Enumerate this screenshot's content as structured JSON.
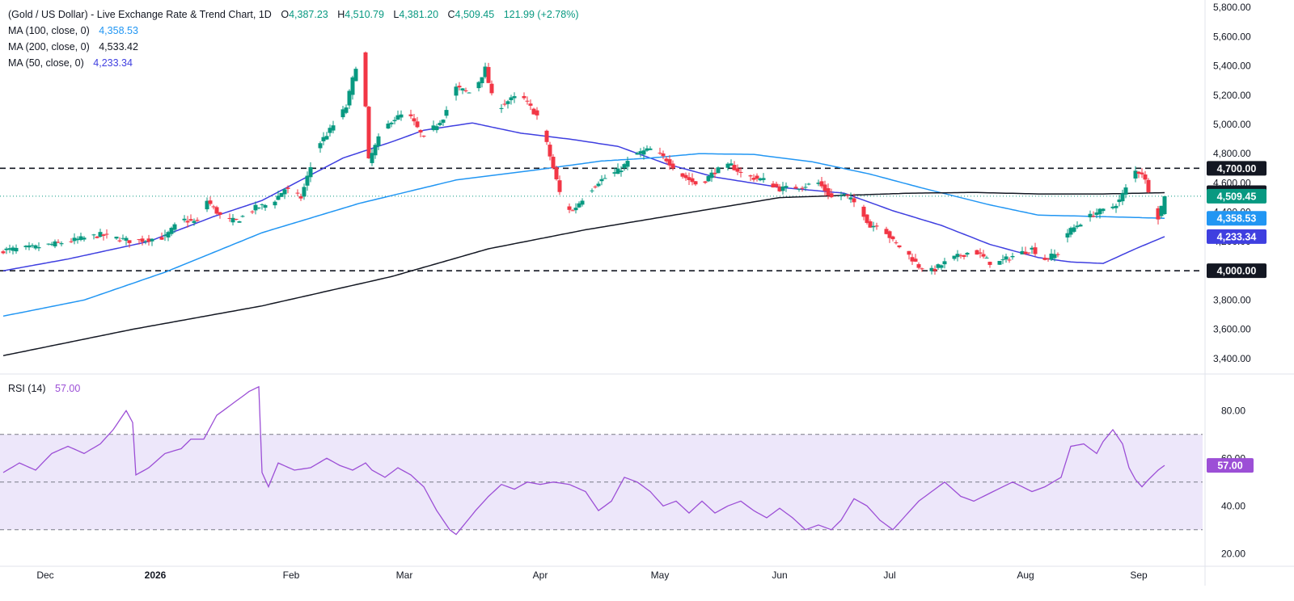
{
  "header": {
    "symbol_title": "(Gold / US Dollar) - Live Exchange Rate & Trend Chart, 1D",
    "ohlc": {
      "o_label": "O",
      "o": "4,387.23",
      "h_label": "H",
      "h": "4,510.79",
      "l_label": "L",
      "l": "4,381.20",
      "c_label": "C",
      "c": "4,509.45",
      "change": "121.99 (+2.78%)"
    },
    "ma_lines": [
      {
        "label": "MA (100, close, 0)",
        "value": "4,358.53",
        "color": "#2196f3"
      },
      {
        "label": "MA (200, close, 0)",
        "value": "4,533.42",
        "color": "#131722"
      },
      {
        "label": "MA (50, close, 0)",
        "value": "4,233.34",
        "color": "#3f3fe0"
      }
    ]
  },
  "rsi_header": {
    "label": "RSI (14)",
    "value": "57.00",
    "color": "#9c4fd6"
  },
  "colors": {
    "up": "#089981",
    "down": "#f23645",
    "ma50": "#3f3fe0",
    "ma100": "#2196f3",
    "ma200": "#131722",
    "rsi": "#9c4fd6",
    "rsi_band": "#ede7fa",
    "last_price": "#089981"
  },
  "chart_data": [
    {
      "type": "candlestick",
      "title": "(Gold / US Dollar) - Live Exchange Rate & Trend Chart, 1D",
      "ylim": [
        3300,
        5850
      ],
      "y_ticks": [
        "3,400.00",
        "3,600.00",
        "3,800.00",
        "4,000.00",
        "4,200.00",
        "4,400.00",
        "4,600.00",
        "4,800.00",
        "5,000.00",
        "5,200.00",
        "5,400.00",
        "5,600.00",
        "5,800.00"
      ],
      "x_ticks": [
        "Dec",
        "2026",
        "Feb",
        "Mar",
        "Apr",
        "May",
        "Jun",
        "Jul",
        "Aug",
        "Sep"
      ],
      "last_ohlc": {
        "open": 4387.23,
        "high": 4510.79,
        "low": 4381.2,
        "close": 4509.45
      },
      "horizontal_levels": [
        {
          "value": 4700,
          "label": "4,700.00",
          "style": "dashed"
        },
        {
          "value": 4000,
          "label": "4,000.00",
          "style": "dashed"
        }
      ],
      "last_price": {
        "value": 4509.45,
        "label": "4,509.45"
      },
      "price_badges": [
        {
          "value": 4700,
          "label": "4,700.00",
          "color": "#131722"
        },
        {
          "value": 4533.42,
          "label": "4,533.42",
          "color": "#131722"
        },
        {
          "value": 4509.45,
          "label": "4,509.45",
          "color": "#089981"
        },
        {
          "value": 4358.53,
          "label": "4,358.53",
          "color": "#2196f3"
        },
        {
          "value": 4233.34,
          "label": "4,233.34",
          "color": "#3f3fe0"
        },
        {
          "value": 4000,
          "label": "4,000.00",
          "color": "#131722"
        }
      ],
      "close_path": [
        [
          0,
          4140
        ],
        [
          10,
          4160
        ],
        [
          20,
          4200
        ],
        [
          30,
          4245
        ],
        [
          40,
          4200
        ],
        [
          50,
          4230
        ],
        [
          55,
          4350
        ],
        [
          60,
          4330
        ],
        [
          63,
          4480
        ],
        [
          68,
          4350
        ],
        [
          72,
          4340
        ],
        [
          78,
          4430
        ],
        [
          83,
          4460
        ],
        [
          87,
          4560
        ],
        [
          92,
          4500
        ],
        [
          97,
          4850
        ],
        [
          101,
          4960
        ],
        [
          106,
          5120
        ],
        [
          109,
          5400
        ],
        [
          111,
          5480
        ],
        [
          113,
          4750
        ],
        [
          116,
          4900
        ],
        [
          120,
          5030
        ],
        [
          125,
          5080
        ],
        [
          130,
          4900
        ],
        [
          136,
          5050
        ],
        [
          140,
          5250
        ],
        [
          145,
          5210
        ],
        [
          149,
          5380
        ],
        [
          152,
          5100
        ],
        [
          156,
          5160
        ],
        [
          160,
          5200
        ],
        [
          166,
          5030
        ],
        [
          170,
          4700
        ],
        [
          173,
          4450
        ],
        [
          176,
          4410
        ],
        [
          180,
          4520
        ],
        [
          184,
          4610
        ],
        [
          190,
          4680
        ],
        [
          196,
          4800
        ],
        [
          200,
          4830
        ],
        [
          205,
          4760
        ],
        [
          210,
          4650
        ],
        [
          215,
          4580
        ],
        [
          220,
          4680
        ],
        [
          225,
          4720
        ],
        [
          229,
          4650
        ],
        [
          235,
          4620
        ],
        [
          240,
          4560
        ],
        [
          245,
          4570
        ],
        [
          252,
          4600
        ],
        [
          256,
          4500
        ],
        [
          260,
          4520
        ],
        [
          265,
          4430
        ],
        [
          268,
          4300
        ],
        [
          271,
          4330
        ],
        [
          275,
          4200
        ],
        [
          279,
          4130
        ],
        [
          283,
          4030
        ],
        [
          287,
          4000
        ],
        [
          293,
          4080
        ],
        [
          300,
          4140
        ],
        [
          306,
          4040
        ],
        [
          312,
          4100
        ],
        [
          318,
          4150
        ],
        [
          322,
          4080
        ],
        [
          326,
          4120
        ],
        [
          329,
          4260
        ],
        [
          333,
          4330
        ],
        [
          338,
          4400
        ],
        [
          342,
          4420
        ],
        [
          345,
          4480
        ],
        [
          348,
          4600
        ],
        [
          350,
          4680
        ],
        [
          352,
          4670
        ],
        [
          355,
          4500
        ],
        [
          357,
          4370
        ],
        [
          359,
          4509.45
        ]
      ],
      "series": [
        {
          "name": "MA (50, close, 0)",
          "last": 4233.34,
          "path": [
            [
              0,
              4000
            ],
            [
              20,
              4080
            ],
            [
              45,
              4200
            ],
            [
              65,
              4370
            ],
            [
              80,
              4480
            ],
            [
              105,
              4770
            ],
            [
              120,
              4880
            ],
            [
              130,
              4960
            ],
            [
              145,
              5010
            ],
            [
              160,
              4940
            ],
            [
              175,
              4900
            ],
            [
              190,
              4850
            ],
            [
              205,
              4730
            ],
            [
              220,
              4640
            ],
            [
              240,
              4570
            ],
            [
              260,
              4530
            ],
            [
              275,
              4410
            ],
            [
              290,
              4310
            ],
            [
              305,
              4180
            ],
            [
              320,
              4090
            ],
            [
              330,
              4060
            ],
            [
              340,
              4050
            ],
            [
              350,
              4150
            ],
            [
              359,
              4233.34
            ]
          ]
        },
        {
          "name": "MA (100, close, 0)",
          "last": 4358.53,
          "path": [
            [
              0,
              3690
            ],
            [
              25,
              3800
            ],
            [
              50,
              3990
            ],
            [
              80,
              4260
            ],
            [
              110,
              4460
            ],
            [
              140,
              4620
            ],
            [
              165,
              4690
            ],
            [
              185,
              4750
            ],
            [
              200,
              4770
            ],
            [
              215,
              4800
            ],
            [
              232,
              4795
            ],
            [
              250,
              4745
            ],
            [
              268,
              4660
            ],
            [
              285,
              4560
            ],
            [
              305,
              4450
            ],
            [
              320,
              4380
            ],
            [
              340,
              4370
            ],
            [
              359,
              4358.53
            ]
          ]
        },
        {
          "name": "MA (200, close, 0)",
          "last": 4533.42,
          "path": [
            [
              0,
              3420
            ],
            [
              40,
              3600
            ],
            [
              80,
              3760
            ],
            [
              120,
              3960
            ],
            [
              150,
              4150
            ],
            [
              180,
              4280
            ],
            [
              210,
              4390
            ],
            [
              240,
              4500
            ],
            [
              260,
              4515
            ],
            [
              280,
              4530
            ],
            [
              300,
              4535
            ],
            [
              320,
              4525
            ],
            [
              340,
              4525
            ],
            [
              359,
              4533.42
            ]
          ]
        }
      ]
    },
    {
      "type": "line",
      "title": "RSI (14)",
      "ylim": [
        15,
        95
      ],
      "y_ticks": [
        "20.00",
        "40.00",
        "60.00",
        "80.00"
      ],
      "band": [
        30,
        70
      ],
      "midline": 50,
      "series": [
        {
          "name": "RSI (14)",
          "last": 57.0,
          "path": [
            [
              0,
              54
            ],
            [
              5,
              58
            ],
            [
              10,
              55
            ],
            [
              15,
              62
            ],
            [
              20,
              65
            ],
            [
              25,
              62
            ],
            [
              30,
              66
            ],
            [
              34,
              72
            ],
            [
              38,
              80
            ],
            [
              40,
              75
            ],
            [
              41,
              53
            ],
            [
              45,
              56
            ],
            [
              50,
              62
            ],
            [
              55,
              64
            ],
            [
              58,
              68
            ],
            [
              62,
              68
            ],
            [
              66,
              78
            ],
            [
              70,
              82
            ],
            [
              76,
              88
            ],
            [
              79,
              90
            ],
            [
              80,
              54
            ],
            [
              82,
              48
            ],
            [
              85,
              58
            ],
            [
              90,
              55
            ],
            [
              95,
              56
            ],
            [
              100,
              60
            ],
            [
              104,
              57
            ],
            [
              108,
              55
            ],
            [
              112,
              58
            ],
            [
              114,
              55
            ],
            [
              118,
              52
            ],
            [
              122,
              56
            ],
            [
              126,
              53
            ],
            [
              130,
              48
            ],
            [
              134,
              38
            ],
            [
              138,
              30
            ],
            [
              140,
              28
            ],
            [
              143,
              33
            ],
            [
              146,
              38
            ],
            [
              150,
              44
            ],
            [
              154,
              49
            ],
            [
              158,
              47
            ],
            [
              162,
              50
            ],
            [
              166,
              49
            ],
            [
              170,
              50
            ],
            [
              175,
              49
            ],
            [
              180,
              46
            ],
            [
              184,
              38
            ],
            [
              188,
              42
            ],
            [
              192,
              52
            ],
            [
              196,
              50
            ],
            [
              200,
              46
            ],
            [
              204,
              40
            ],
            [
              208,
              42
            ],
            [
              212,
              37
            ],
            [
              216,
              42
            ],
            [
              220,
              37
            ],
            [
              224,
              40
            ],
            [
              228,
              42
            ],
            [
              232,
              38
            ],
            [
              236,
              35
            ],
            [
              240,
              39
            ],
            [
              244,
              35
            ],
            [
              248,
              30
            ],
            [
              252,
              32
            ],
            [
              256,
              30
            ],
            [
              259,
              34
            ],
            [
              263,
              43
            ],
            [
              267,
              40
            ],
            [
              271,
              34
            ],
            [
              275,
              30
            ],
            [
              279,
              36
            ],
            [
              283,
              42
            ],
            [
              287,
              46
            ],
            [
              291,
              50
            ],
            [
              296,
              44
            ],
            [
              300,
              42
            ],
            [
              306,
              46
            ],
            [
              312,
              50
            ],
            [
              318,
              46
            ],
            [
              322,
              48
            ],
            [
              327,
              52
            ],
            [
              330,
              65
            ],
            [
              334,
              66
            ],
            [
              338,
              62
            ],
            [
              340,
              67
            ],
            [
              343,
              72
            ],
            [
              346,
              66
            ],
            [
              348,
              56
            ],
            [
              350,
              51
            ],
            [
              352,
              48
            ],
            [
              354,
              51
            ],
            [
              357,
              55
            ],
            [
              359,
              57
            ]
          ]
        }
      ]
    }
  ]
}
